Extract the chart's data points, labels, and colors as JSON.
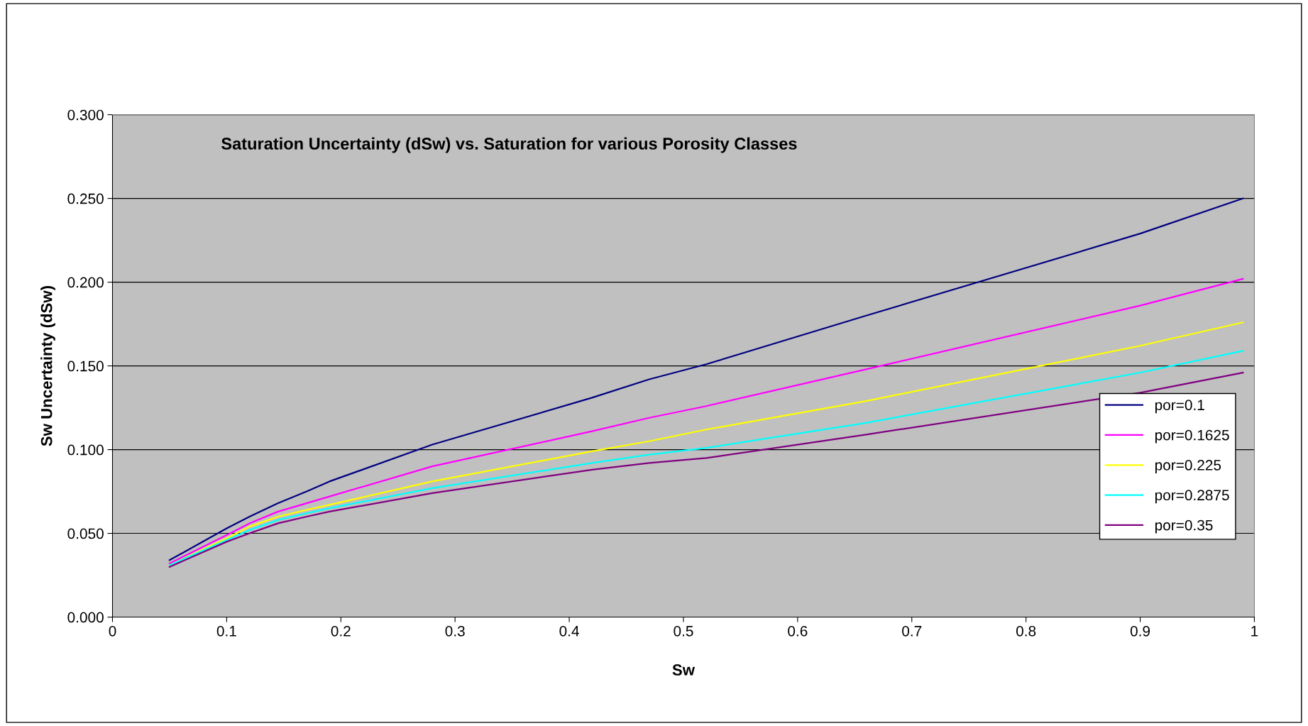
{
  "chart_data": {
    "type": "line",
    "title": "Saturation Uncertainty (dSw) vs. Saturation for various Porosity Classes",
    "xlabel": "Sw",
    "ylabel": "Sw Uncertainty (dSw)",
    "xlim": [
      0,
      1
    ],
    "xticks": [
      0,
      0.1,
      0.2,
      0.3,
      0.4,
      0.5,
      0.6,
      0.7,
      0.8,
      0.9,
      1
    ],
    "ylim": [
      0,
      0.3
    ],
    "yticks": [
      {
        "value": 0,
        "label": "0.000"
      },
      {
        "value": 0.05,
        "label": "0.050"
      },
      {
        "value": 0.1,
        "label": "0.100"
      },
      {
        "value": 0.15,
        "label": "0.150"
      },
      {
        "value": 0.2,
        "label": "0.200"
      },
      {
        "value": 0.25,
        "label": "0.250"
      },
      {
        "value": 0.3,
        "label": "0.300"
      }
    ],
    "grid": "y",
    "legend": "right",
    "marker": "none",
    "line_style": "solid",
    "x": [
      0.05,
      0.1,
      0.12,
      0.145,
      0.17,
      0.19,
      0.28,
      0.42,
      0.47,
      0.52,
      0.66,
      0.9,
      0.99
    ],
    "series": [
      {
        "name": "por=0.1",
        "color": "#000080",
        "values": [
          0.034,
          0.053,
          0.06,
          0.068,
          0.075,
          0.081,
          0.103,
          0.131,
          0.142,
          0.151,
          0.18,
          0.229,
          0.25
        ]
      },
      {
        "name": "por=0.1625",
        "color": "#ff00ff",
        "values": [
          0.032,
          0.049,
          0.056,
          0.063,
          0.068,
          0.072,
          0.09,
          0.111,
          0.119,
          0.126,
          0.148,
          0.186,
          0.202
        ]
      },
      {
        "name": "por=0.225",
        "color": "#ffff00",
        "values": [
          0.031,
          0.047,
          0.054,
          0.06,
          0.064,
          0.067,
          0.081,
          0.099,
          0.105,
          0.112,
          0.129,
          0.162,
          0.176
        ]
      },
      {
        "name": "por=0.2875",
        "color": "#00ffff",
        "values": [
          0.031,
          0.046,
          0.052,
          0.058,
          0.062,
          0.065,
          0.077,
          0.092,
          0.097,
          0.101,
          0.116,
          0.146,
          0.159
        ]
      },
      {
        "name": "por=0.35",
        "color": "#800080",
        "values": [
          0.03,
          0.045,
          0.05,
          0.056,
          0.06,
          0.063,
          0.074,
          0.088,
          0.092,
          0.095,
          0.109,
          0.134,
          0.146
        ]
      }
    ]
  }
}
